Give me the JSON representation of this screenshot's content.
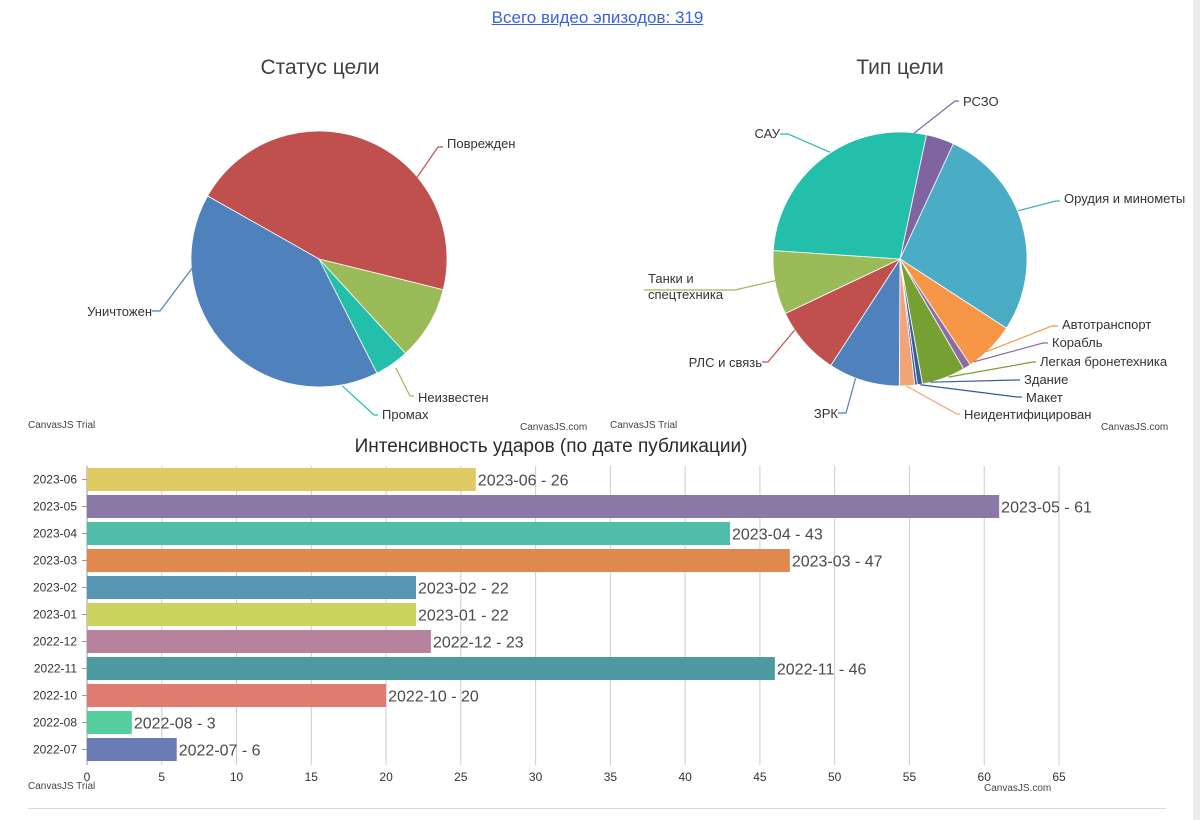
{
  "header": {
    "episodes_link": "Всего видео эпизодов: 319"
  },
  "watermarks": {
    "trial": "CanvasJS Trial",
    "site": "CanvasJS.com"
  },
  "chart_data": [
    {
      "type": "pie",
      "title": "Статус цели",
      "start_angle_deg": 209.5,
      "slices": [
        {
          "label": "Поврежден",
          "value": 137,
          "color": "#c0504e"
        },
        {
          "label": "Неизвестен",
          "value": 28,
          "color": "#9bbb58"
        },
        {
          "label": "Промах",
          "value": 13,
          "color": "#23bfaa"
        },
        {
          "label": "Уничтожен",
          "value": 122,
          "color": "#4f81bc"
        }
      ]
    },
    {
      "type": "pie",
      "title": "Тип цели",
      "start_angle_deg": 282,
      "slices": [
        {
          "label": "РСЗО",
          "value": 11,
          "color": "#8064a1"
        },
        {
          "label": "Орудия и минометы",
          "value": 84,
          "color": "#4aacc5"
        },
        {
          "label": "Автотранспорт",
          "value": 20,
          "color": "#f79647"
        },
        {
          "label": "Корабль",
          "value": 3,
          "color": "#8b6ea6"
        },
        {
          "label": "Легкая бронетехника",
          "value": 17,
          "color": "#77a033"
        },
        {
          "label": "Здание",
          "value": 2,
          "color": "#3b5b9a"
        },
        {
          "label": "Макет",
          "value": 1,
          "color": "#2b5aa8"
        },
        {
          "label": "Неидентифицирован",
          "value": 6,
          "color": "#f2a377"
        },
        {
          "label": "ЗРК",
          "value": 28,
          "color": "#4f81bc"
        },
        {
          "label": "РЛС и связь",
          "value": 27,
          "color": "#c0504e"
        },
        {
          "label": "Танки и\nспецтехника",
          "value": 25,
          "color": "#9bbb58"
        },
        {
          "label": "САУ",
          "value": 84,
          "color": "#23bfaa"
        }
      ]
    },
    {
      "type": "bar",
      "orientation": "horizontal",
      "title": "Интенсивность ударов (по дате публикации)",
      "xlim": [
        0,
        65
      ],
      "xticks": [
        0,
        5,
        10,
        15,
        20,
        25,
        30,
        35,
        40,
        45,
        50,
        55,
        60,
        65
      ],
      "grid": true,
      "categories": [
        "2023-06",
        "2023-05",
        "2023-04",
        "2023-03",
        "2023-02",
        "2023-01",
        "2022-12",
        "2022-11",
        "2022-10",
        "2022-08",
        "2022-07"
      ],
      "values": [
        26,
        61,
        43,
        47,
        22,
        22,
        23,
        46,
        20,
        3,
        6
      ],
      "data_labels": [
        "2023-06 - 26",
        "2023-05 - 61",
        "2023-04 - 43",
        "2023-03 - 47",
        "2023-02 - 22",
        "2023-01 - 22",
        "2022-12 - 23",
        "2022-11 - 46",
        "2022-10 - 20",
        "2022-08 - 3",
        "2022-07 - 6"
      ],
      "colors": [
        "#e0ca63",
        "#8b78a6",
        "#4fbda8",
        "#e0884e",
        "#5895b1",
        "#cbd35f",
        "#b7829d",
        "#4d9aa0",
        "#e07b72",
        "#56cd9c",
        "#6b7bb3"
      ]
    }
  ]
}
